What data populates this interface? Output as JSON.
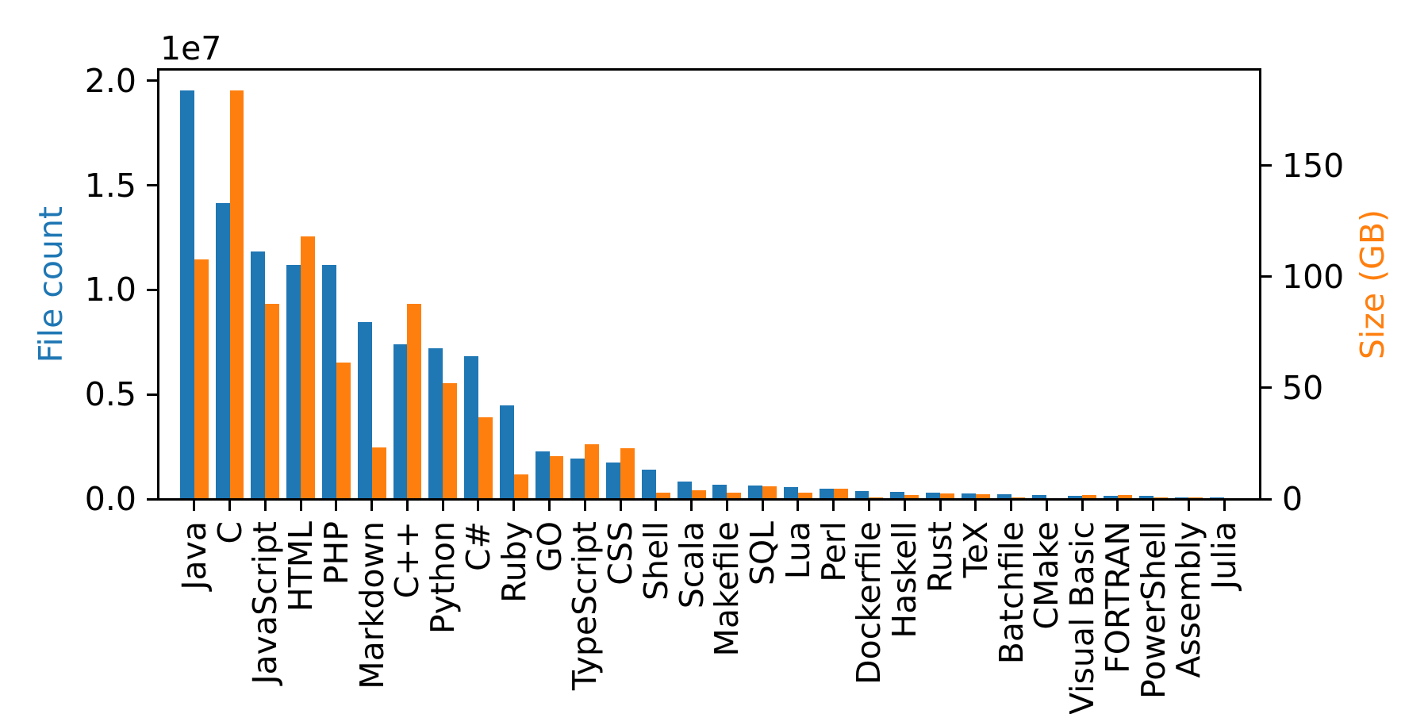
{
  "figure": {
    "background": "#ffffff",
    "offset_text": "1e7"
  },
  "chart_data": {
    "type": "bar",
    "title": "",
    "xlabel": "",
    "grid": false,
    "legend": "none",
    "categories": [
      "Java",
      "C",
      "JavaScript",
      "HTML",
      "PHP",
      "Markdown",
      "C++",
      "Python",
      "C#",
      "Ruby",
      "GO",
      "TypeScript",
      "CSS",
      "Shell",
      "Scala",
      "Makefile",
      "SQL",
      "Lua",
      "Perl",
      "Dockerfile",
      "Haskell",
      "Rust",
      "TeX",
      "Batchfile",
      "CMake",
      "Visual Basic",
      "FORTRAN",
      "PowerShell",
      "Assembly",
      "Julia"
    ],
    "series": [
      {
        "name": "File count",
        "axis": "left",
        "color": "#1f77b4",
        "values": [
          19548190,
          14143113,
          11839883,
          11178557,
          11177610,
          8464626,
          7380520,
          7226626,
          6811652,
          4473331,
          2265436,
          1940406,
          1734406,
          1385648,
          835755,
          679430,
          656671,
          578554,
          497949,
          366505,
          340623,
          322431,
          251015,
          236945,
          175282,
          155652,
          142038,
          136846,
          82905,
          58317
        ]
      },
      {
        "name": "Size (GB)",
        "axis": "right",
        "color": "#ff7f0e",
        "values": [
          107.7,
          183.83,
          87.82,
          118.12,
          61.41,
          23.09,
          87.73,
          52.03,
          36.83,
          10.95,
          19.28,
          24.59,
          22.67,
          3.01,
          3.87,
          2.92,
          5.67,
          2.81,
          4.7,
          0.71,
          1.85,
          2.68,
          2.15,
          0.7,
          0.54,
          1.91,
          1.62,
          0.69,
          0.78,
          0.29
        ]
      }
    ],
    "left_axis": {
      "label": "File count",
      "label_color": "#1f77b4",
      "offset_text": "1e7",
      "tick_labels": [
        "0.0",
        "0.5",
        "1.0",
        "1.5",
        "2.0"
      ],
      "tick_values": [
        0,
        5000000,
        10000000,
        15000000,
        20000000
      ],
      "max": 20525000
    },
    "right_axis": {
      "label": "Size (GB)",
      "label_color": "#ff7f0e",
      "tick_labels": [
        "0",
        "50",
        "100",
        "150"
      ],
      "tick_values": [
        0,
        50,
        100,
        150
      ],
      "max": 193.0
    }
  }
}
